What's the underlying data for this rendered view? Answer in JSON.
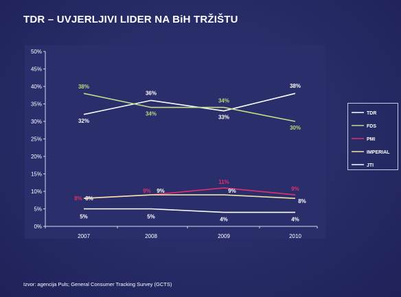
{
  "slide": {
    "title": "TDR – UVJERLJIVI LIDER NA BiH TRŽIŠTU",
    "footer": "Izvor: agencija Puls; General Consumer Tracking Survey (GCTS)"
  },
  "chart_data": {
    "type": "line",
    "title": "",
    "xlabel": "",
    "ylabel": "",
    "categories": [
      "2007",
      "2008",
      "2009",
      "2010"
    ],
    "yticks": [
      "0%",
      "5%",
      "10%",
      "15%",
      "20%",
      "25%",
      "30%",
      "35%",
      "40%",
      "45%",
      "50%"
    ],
    "ylim": [
      0,
      50
    ],
    "grid": false,
    "legend_position": "right",
    "series": [
      {
        "name": "TDR",
        "color": "#ffffff",
        "values": [
          32,
          36,
          33,
          38
        ],
        "labels": [
          "32%",
          "36%",
          "33%",
          "38%"
        ],
        "label_color": "#ffffff"
      },
      {
        "name": "FDS",
        "color": "#c6e08a",
        "values": [
          38,
          34,
          34,
          30
        ],
        "labels": [
          "38%",
          "34%",
          "34%",
          "30%"
        ],
        "label_color": "#b9dc7a"
      },
      {
        "name": "PMI",
        "color": "#e0306e",
        "values": [
          8,
          9,
          11,
          9
        ],
        "labels": [
          "8%",
          "9%",
          "11%",
          "9%"
        ],
        "label_color": "#e0306e"
      },
      {
        "name": "IMPERIAL",
        "color": "#f3e6a6",
        "values": [
          8,
          9,
          9,
          8
        ],
        "labels": [
          "8%",
          "9%",
          "9%",
          "8%"
        ],
        "label_color": "#ffffff"
      },
      {
        "name": "JTI",
        "color": "#ffffff",
        "values": [
          5,
          5,
          4,
          4
        ],
        "labels": [
          "5%",
          "5%",
          "4%",
          "4%"
        ],
        "label_color": "#ffffff"
      }
    ]
  }
}
